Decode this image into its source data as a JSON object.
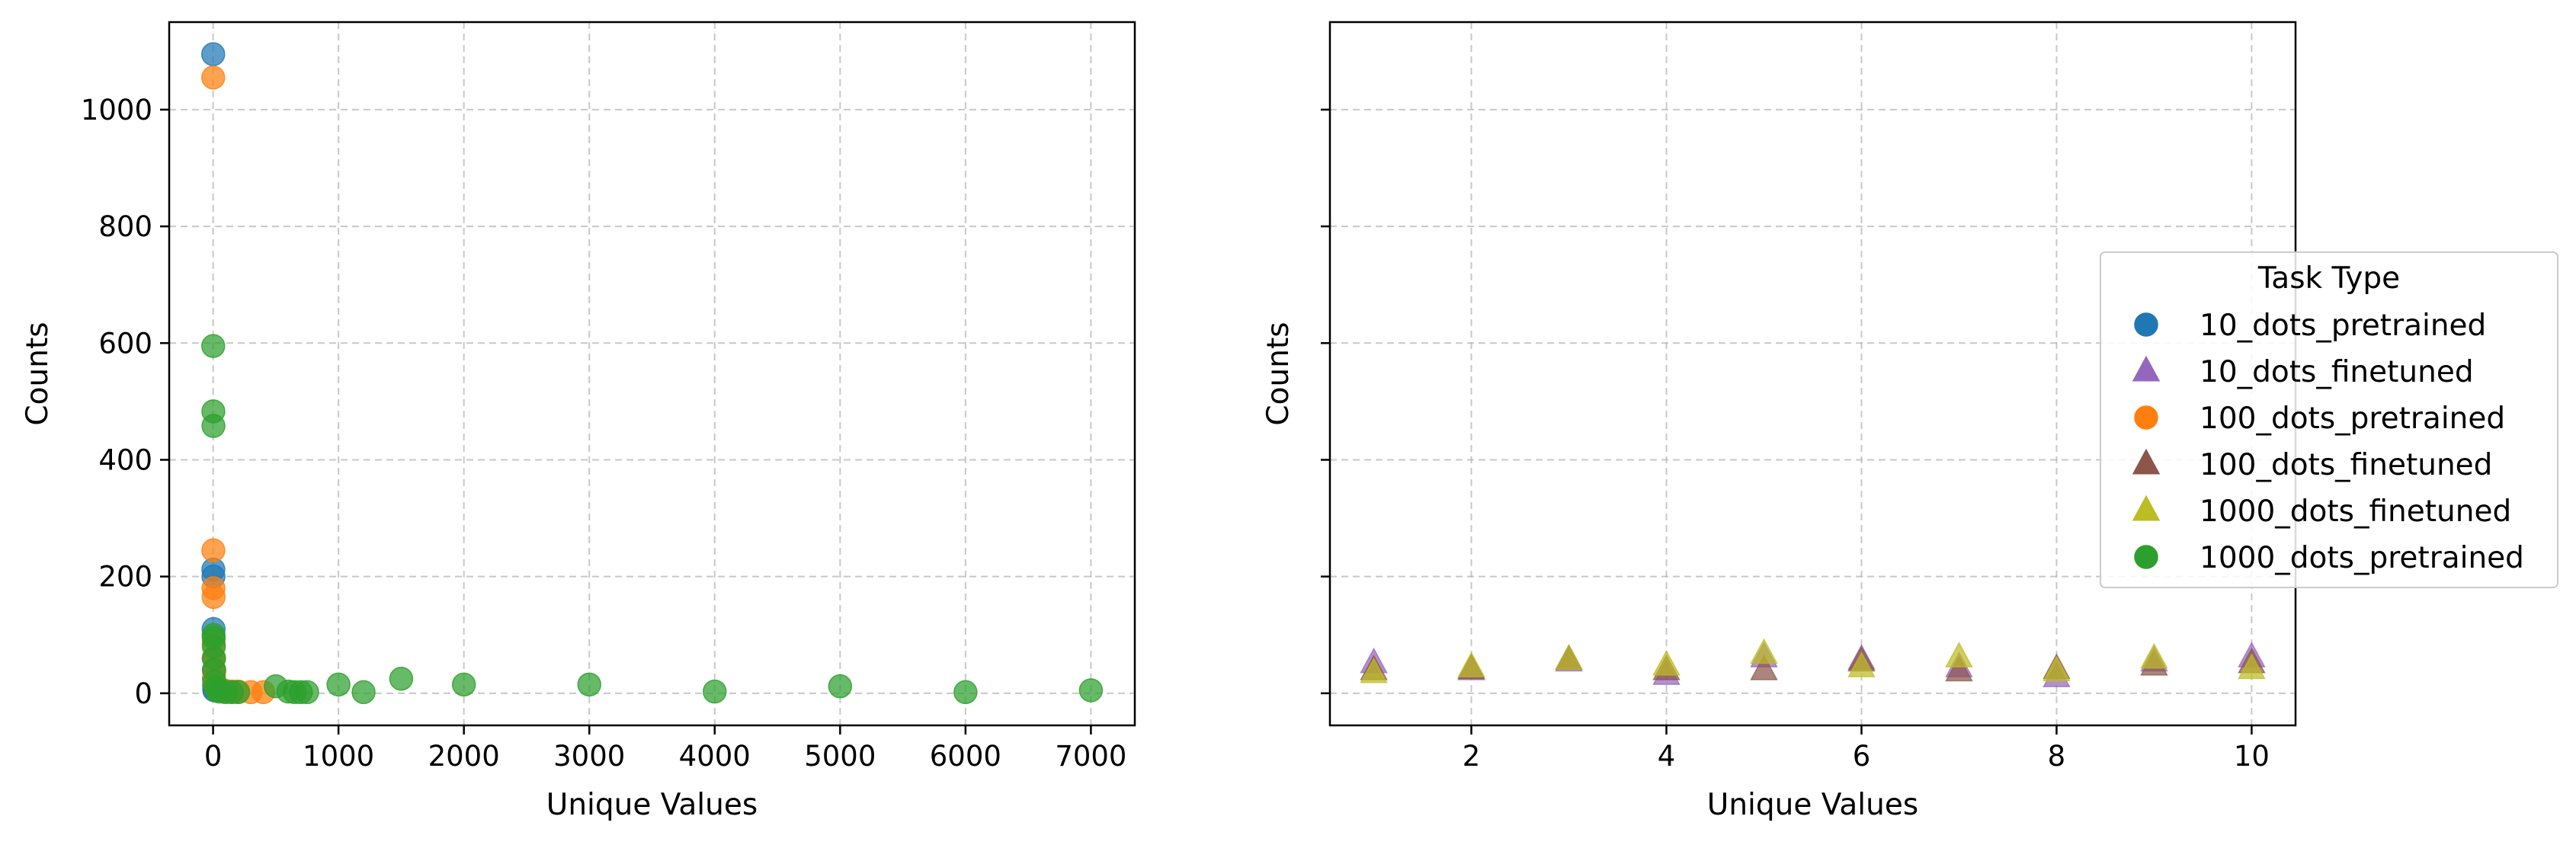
{
  "chart_data": [
    {
      "type": "scatter",
      "title": "",
      "xlabel": "Unique Values",
      "ylabel": "Counts",
      "xlim": [
        -350,
        7350
      ],
      "ylim": [
        -55,
        1150
      ],
      "xticks": [
        0,
        1000,
        2000,
        3000,
        4000,
        5000,
        6000,
        7000
      ],
      "yticks": [
        0,
        200,
        400,
        600,
        800,
        1000
      ],
      "grid": true,
      "series": [
        {
          "name": "10_dots_pretrained",
          "marker": "circle",
          "color": "#1f77b4",
          "points": [
            [
              1,
              1095
            ],
            [
              2,
              212
            ],
            [
              3,
              200
            ],
            [
              4,
              110
            ],
            [
              5,
              60
            ],
            [
              6,
              40
            ],
            [
              7,
              25
            ],
            [
              8,
              15
            ],
            [
              9,
              8
            ],
            [
              10,
              5
            ]
          ]
        },
        {
          "name": "100_dots_pretrained",
          "marker": "circle",
          "color": "#ff7f0e",
          "points": [
            [
              1,
              1055
            ],
            [
              2,
              245
            ],
            [
              3,
              180
            ],
            [
              4,
              165
            ],
            [
              5,
              85
            ],
            [
              6,
              60
            ],
            [
              8,
              35
            ],
            [
              10,
              20
            ],
            [
              20,
              12
            ],
            [
              30,
              8
            ],
            [
              50,
              6
            ],
            [
              80,
              5
            ],
            [
              100,
              4
            ],
            [
              150,
              3
            ],
            [
              200,
              3
            ],
            [
              300,
              2
            ],
            [
              400,
              2
            ]
          ]
        },
        {
          "name": "1000_dots_pretrained",
          "marker": "circle",
          "color": "#2ca02c",
          "points": [
            [
              1,
              595
            ],
            [
              2,
              483
            ],
            [
              3,
              458
            ],
            [
              4,
              100
            ],
            [
              5,
              95
            ],
            [
              6,
              80
            ],
            [
              8,
              60
            ],
            [
              10,
              40
            ],
            [
              12,
              20
            ],
            [
              20,
              10
            ],
            [
              30,
              5
            ],
            [
              50,
              3
            ],
            [
              100,
              2
            ],
            [
              150,
              2
            ],
            [
              200,
              2
            ],
            [
              500,
              12
            ],
            [
              600,
              3
            ],
            [
              650,
              2
            ],
            [
              700,
              2
            ],
            [
              750,
              2
            ],
            [
              1000,
              15
            ],
            [
              1200,
              2
            ],
            [
              1500,
              25
            ],
            [
              2000,
              15
            ],
            [
              3000,
              15
            ],
            [
              4000,
              3
            ],
            [
              5000,
              12
            ],
            [
              6000,
              2
            ],
            [
              7000,
              5
            ]
          ]
        }
      ]
    },
    {
      "type": "scatter",
      "title": "",
      "xlabel": "Unique Values",
      "ylabel": "Counts",
      "xlim": [
        0.55,
        10.45
      ],
      "ylim": [
        -55,
        1150
      ],
      "sharey": true,
      "xticks": [
        2,
        4,
        6,
        8,
        10
      ],
      "yticks": [
        0,
        200,
        400,
        600,
        800,
        1000
      ],
      "grid": true,
      "series": [
        {
          "name": "10_dots_finetuned",
          "marker": "triangle",
          "color": "#9467bd",
          "points": [
            [
              1,
              52
            ],
            [
              2,
              40
            ],
            [
              3,
              55
            ],
            [
              4,
              32
            ],
            [
              5,
              62
            ],
            [
              6,
              58
            ],
            [
              7,
              45
            ],
            [
              8,
              28
            ],
            [
              9,
              55
            ],
            [
              10,
              62
            ]
          ]
        },
        {
          "name": "100_dots_finetuned",
          "marker": "triangle",
          "color": "#8c564b",
          "points": [
            [
              1,
              40
            ],
            [
              2,
              42
            ],
            [
              3,
              58
            ],
            [
              4,
              40
            ],
            [
              5,
              40
            ],
            [
              6,
              55
            ],
            [
              7,
              38
            ],
            [
              8,
              42
            ],
            [
              9,
              48
            ],
            [
              10,
              52
            ]
          ]
        },
        {
          "name": "1000_dots_finetuned",
          "marker": "triangle",
          "color": "#bcbd22",
          "points": [
            [
              1,
              35
            ],
            [
              2,
              45
            ],
            [
              3,
              58
            ],
            [
              4,
              48
            ],
            [
              5,
              68
            ],
            [
              6,
              45
            ],
            [
              7,
              62
            ],
            [
              8,
              38
            ],
            [
              9,
              60
            ],
            [
              10,
              42
            ]
          ]
        }
      ]
    }
  ],
  "legend": {
    "title": "Task Type",
    "placement": "right",
    "entries": [
      {
        "label": "10_dots_pretrained",
        "marker": "circle",
        "color": "#1f77b4"
      },
      {
        "label": "10_dots_finetuned",
        "marker": "triangle",
        "color": "#9467bd"
      },
      {
        "label": "100_dots_pretrained",
        "marker": "circle",
        "color": "#ff7f0e"
      },
      {
        "label": "100_dots_finetuned",
        "marker": "triangle",
        "color": "#8c564b"
      },
      {
        "label": "1000_dots_finetuned",
        "marker": "triangle",
        "color": "#bcbd22"
      },
      {
        "label": "1000_dots_pretrained",
        "marker": "circle",
        "color": "#2ca02c"
      }
    ]
  }
}
